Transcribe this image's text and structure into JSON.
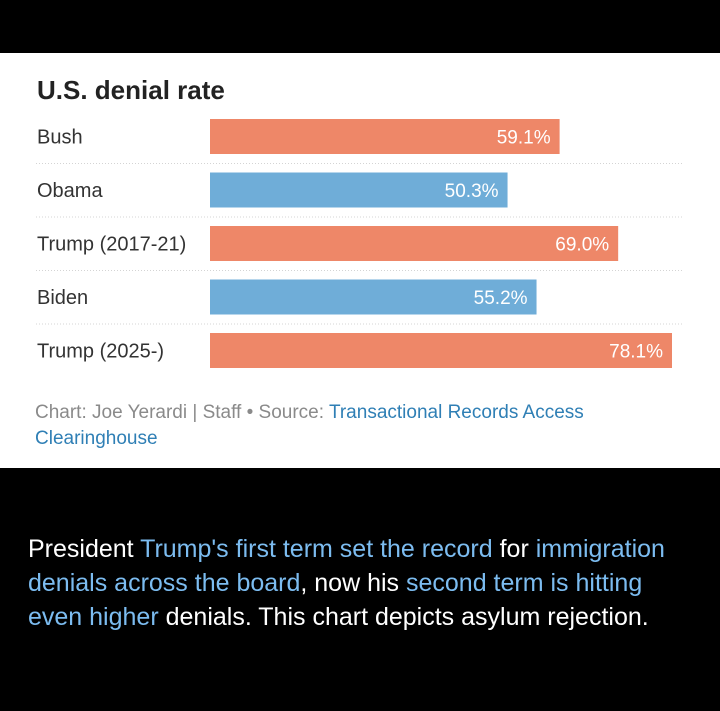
{
  "colors": {
    "trump": "#ee8768",
    "other": "#6fadd8",
    "highlight": "#7cbcf0",
    "link": "#2f7fb5"
  },
  "chart_data": {
    "type": "bar",
    "orientation": "horizontal",
    "title": "U.S. denial rate",
    "categories": [
      "Bush",
      "Obama",
      "Trump (2017-21)",
      "Biden",
      "Trump (2025-)"
    ],
    "values": [
      59.1,
      50.3,
      69.0,
      55.2,
      78.1
    ],
    "value_labels": [
      "59.1%",
      "50.3%",
      "69.0%",
      "55.2%",
      "78.1%"
    ],
    "bar_colors": [
      "#ee8768",
      "#6fadd8",
      "#ee8768",
      "#6fadd8",
      "#ee8768"
    ],
    "xlim": [
      0,
      100
    ],
    "xlabel": "",
    "ylabel": "",
    "grid": false
  },
  "credit": {
    "prefix": "Chart: Joe Yerardi | Staff • Source: ",
    "source_link": "Transactional Records Access Clearinghouse"
  },
  "caption": {
    "part1": "President ",
    "highlight1": "Trump's first term set the record",
    "part2": " for ",
    "highlight2": "immigration denials across the board",
    "part3": ", now his ",
    "highlight3": "second term is hitting even higher",
    "part4": " denials. This chart depicts asylum rejection."
  }
}
